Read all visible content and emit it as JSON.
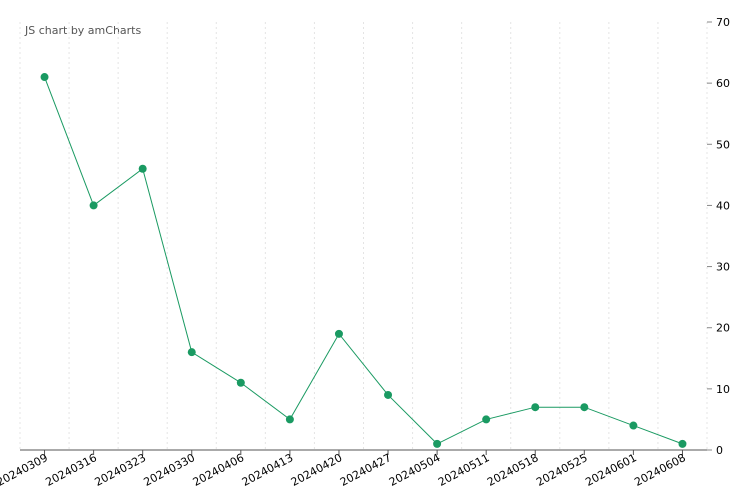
{
  "chart_data": {
    "type": "line",
    "credit": "JS chart by amCharts",
    "categories": [
      "20240309",
      "20240316",
      "20240323",
      "20240330",
      "20240406",
      "20240413",
      "20240420",
      "20240427",
      "20240504",
      "20240511",
      "20240518",
      "20240525",
      "20240601",
      "20240608"
    ],
    "series": [
      {
        "color": "#1a9a62",
        "values": [
          61,
          40,
          46,
          16,
          11,
          5,
          19,
          9,
          1,
          5,
          7,
          7,
          4,
          1
        ]
      }
    ],
    "ylim": [
      0,
      70
    ],
    "yticks": [
      0,
      10,
      20,
      30,
      40,
      50,
      60,
      70
    ],
    "y_axis_side": "right",
    "grid": true
  }
}
